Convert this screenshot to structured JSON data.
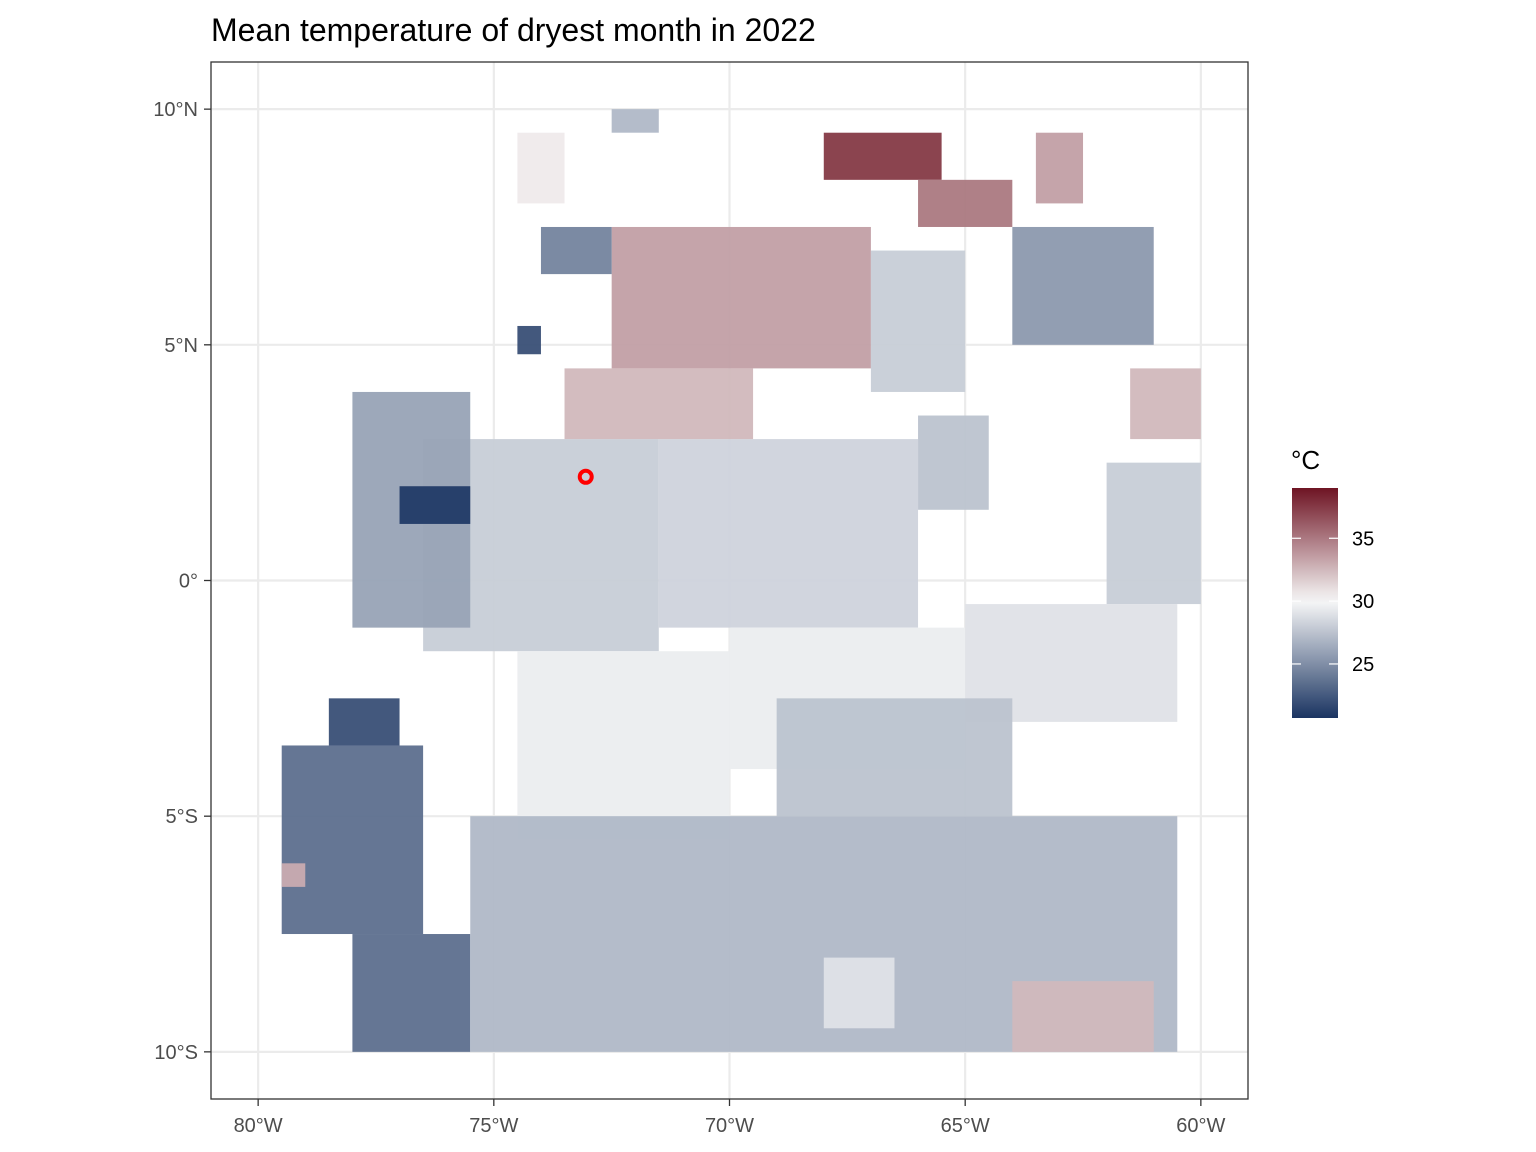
{
  "chart_data": {
    "type": "heatmap",
    "title": "Mean temperature of dryest month in 2022",
    "xlabel": "",
    "ylabel": "",
    "xlim": [
      -81,
      -59
    ],
    "ylim": [
      -11,
      11
    ],
    "x_ticks": [
      {
        "value": -80,
        "label": "80°W"
      },
      {
        "value": -75,
        "label": "75°W"
      },
      {
        "value": -70,
        "label": "70°W"
      },
      {
        "value": -65,
        "label": "65°W"
      },
      {
        "value": -60,
        "label": "60°W"
      }
    ],
    "y_ticks": [
      {
        "value": 10,
        "label": "10°N"
      },
      {
        "value": 5,
        "label": "5°N"
      },
      {
        "value": 0,
        "label": "0°"
      },
      {
        "value": -5,
        "label": "5°S"
      },
      {
        "value": -10,
        "label": "10°S"
      }
    ],
    "grid": true,
    "legend": {
      "title": "°C",
      "placement": "right",
      "range": [
        20.7,
        39
      ],
      "midpoint": 30,
      "breaks": [
        25,
        30,
        35
      ],
      "colors": {
        "low": "#1a3461",
        "mid": "#f7f7f7",
        "high": "#6e1423"
      }
    },
    "marker": {
      "lon": -73.05,
      "lat": 2.2,
      "color": "#ff0000"
    },
    "regions": [
      {
        "lon": [
          -76.5,
          -71.5
        ],
        "lat": [
          -1.5,
          3
        ],
        "value": 28
      },
      {
        "lon": [
          -71.5,
          -66
        ],
        "lat": [
          -1,
          3
        ],
        "value": 28.3
      },
      {
        "lon": [
          -66,
          -64.5
        ],
        "lat": [
          1.5,
          3.5
        ],
        "value": 27.5
      },
      {
        "lon": [
          -78,
          -75.5
        ],
        "lat": [
          -1,
          4
        ],
        "value": 26
      },
      {
        "lon": [
          -77,
          -75.5
        ],
        "lat": [
          1.2,
          2
        ],
        "value": 21
      },
      {
        "lon": [
          -73.5,
          -69.5
        ],
        "lat": [
          3,
          4.5
        ],
        "value": 32.5
      },
      {
        "lon": [
          -72.5,
          -67
        ],
        "lat": [
          4.5,
          7.5
        ],
        "value": 33.5
      },
      {
        "lon": [
          -67,
          -65
        ],
        "lat": [
          4,
          7
        ],
        "value": 28
      },
      {
        "lon": [
          -68,
          -65.5
        ],
        "lat": [
          8.5,
          9.5
        ],
        "value": 37.5
      },
      {
        "lon": [
          -66,
          -64
        ],
        "lat": [
          7.5,
          8.5
        ],
        "value": 35
      },
      {
        "lon": [
          -64,
          -61
        ],
        "lat": [
          5,
          7.5
        ],
        "value": 25.5
      },
      {
        "lon": [
          -61.5,
          -60
        ],
        "lat": [
          3,
          4.5
        ],
        "value": 32.5
      },
      {
        "lon": [
          -63.5,
          -62.5
        ],
        "lat": [
          8,
          9.5
        ],
        "value": 33.5
      },
      {
        "lon": [
          -72.5,
          -71.5
        ],
        "lat": [
          9.5,
          10
        ],
        "value": 27
      },
      {
        "lon": [
          -74.5,
          -73.5
        ],
        "lat": [
          8,
          9.5
        ],
        "value": 30.5
      },
      {
        "lon": [
          -74,
          -72.5
        ],
        "lat": [
          6.5,
          7.5
        ],
        "value": 24.5
      },
      {
        "lon": [
          -74.5,
          -74
        ],
        "lat": [
          4.8,
          5.4
        ],
        "value": 22
      },
      {
        "lon": [
          -62,
          -60
        ],
        "lat": [
          -0.5,
          2.5
        ],
        "value": 28
      },
      {
        "lon": [
          -74.5,
          -70
        ],
        "lat": [
          -5.5,
          -1.5
        ],
        "value": 29.5
      },
      {
        "lon": [
          -70,
          -65
        ],
        "lat": [
          -4,
          -1
        ],
        "value": 29.5
      },
      {
        "lon": [
          -65,
          -60.5
        ],
        "lat": [
          -3,
          -0.5
        ],
        "value": 29
      },
      {
        "lon": [
          -69,
          -64
        ],
        "lat": [
          -5,
          -2.5
        ],
        "value": 27.5
      },
      {
        "lon": [
          -79.5,
          -76.5
        ],
        "lat": [
          -7.5,
          -3.5
        ],
        "value": 23.5
      },
      {
        "lon": [
          -78.5,
          -77
        ],
        "lat": [
          -3.5,
          -2.5
        ],
        "value": 22
      },
      {
        "lon": [
          -78,
          -75.5
        ],
        "lat": [
          -10,
          -7.5
        ],
        "value": 23.5
      },
      {
        "lon": [
          -79.5,
          -79
        ],
        "lat": [
          -6.5,
          -6
        ],
        "value": 33
      },
      {
        "lon": [
          -75.5,
          -60.5
        ],
        "lat": [
          -10,
          -5
        ],
        "value": 27
      },
      {
        "lon": [
          -64,
          -61
        ],
        "lat": [
          -10,
          -8.5
        ],
        "value": 32.5
      },
      {
        "lon": [
          -68,
          -66.5
        ],
        "lat": [
          -9.5,
          -8
        ],
        "value": 29
      }
    ]
  }
}
